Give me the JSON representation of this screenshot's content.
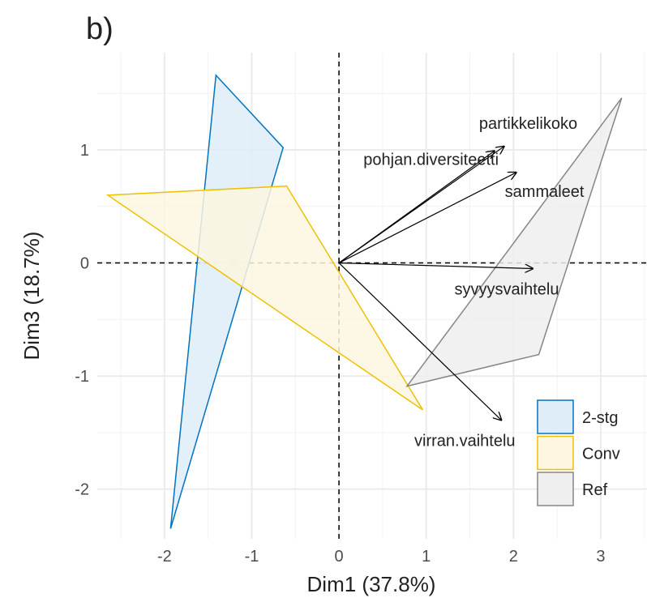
{
  "chart_data": {
    "type": "biplot",
    "title": "b)",
    "x_label": "Dim1 (37.8%)",
    "y_label": "Dim3 (18.7%)",
    "xlim": [
      -2.77,
      3.53
    ],
    "ylim": [
      -2.44,
      1.86
    ],
    "xticks": [
      -2,
      -1,
      0,
      1,
      2,
      3
    ],
    "yticks": [
      -2,
      -1,
      0,
      1
    ],
    "grid": true,
    "legend": "bottom-right",
    "series": [
      {
        "name": "2-stg",
        "color": "#0073C2",
        "fill": "#dfedf8",
        "x": [
          -1.41,
          -0.64,
          -1.93
        ],
        "y": [
          1.66,
          1.02,
          -2.35
        ]
      },
      {
        "name": "Conv",
        "color": "#EFC000",
        "fill": "#fdf6e0",
        "x": [
          -2.65,
          -0.6,
          0.96
        ],
        "y": [
          0.6,
          0.68,
          -1.3
        ]
      },
      {
        "name": "Ref",
        "color": "#868686",
        "fill": "#efefef",
        "x": [
          3.24,
          2.29,
          0.78
        ],
        "y": [
          1.46,
          -0.81,
          -1.09
        ]
      }
    ],
    "variables": {
      "names": [
        "partikkelikoko",
        "pohjan.diversiteetti",
        "sammaleet",
        "syvyysvaihtelu",
        "virran.vaihtelu"
      ],
      "x": [
        1.89,
        1.78,
        2.03,
        2.22,
        1.86
      ],
      "y": [
        1.03,
        0.99,
        0.8,
        -0.05,
        -1.39
      ]
    }
  }
}
